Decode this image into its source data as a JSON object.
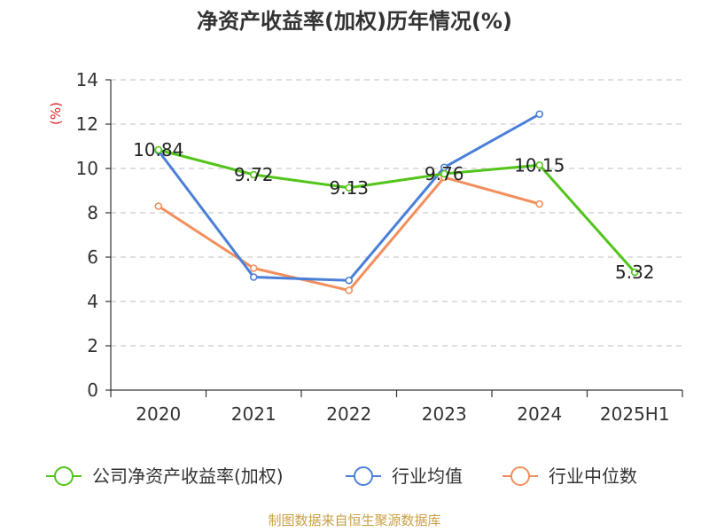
{
  "chart_data": {
    "type": "line",
    "title": "净资产收益率(加权)历年情况(%)",
    "ylabel": "(%)",
    "xlabel": "",
    "categories": [
      "2020",
      "2021",
      "2022",
      "2023",
      "2024",
      "2025H1"
    ],
    "ylim": [
      0,
      14
    ],
    "yticks": [
      0,
      2,
      4,
      6,
      8,
      10,
      12,
      14
    ],
    "grid": true,
    "legend_position": "bottom",
    "series": [
      {
        "name": "公司净资产收益率(加权)",
        "color": "#52c41a",
        "values": [
          10.84,
          9.72,
          9.13,
          9.76,
          10.15,
          5.32
        ],
        "labels": [
          "10.84",
          "9.72",
          "9.13",
          "9.76",
          "10.15",
          "5.32"
        ]
      },
      {
        "name": "行业均值",
        "color": "#4a7fd8",
        "values": [
          10.8,
          5.1,
          4.95,
          10.05,
          12.45,
          null
        ]
      },
      {
        "name": "行业中位数",
        "color": "#f28f5c",
        "values": [
          8.3,
          5.5,
          4.5,
          9.6,
          8.4,
          null
        ]
      }
    ]
  },
  "source_text": "制图数据来自恒生聚源数据库",
  "colors": {
    "source": "#c9a045",
    "ylabel": "#e02020",
    "axis": "#333333",
    "grid": "#cccccc"
  }
}
